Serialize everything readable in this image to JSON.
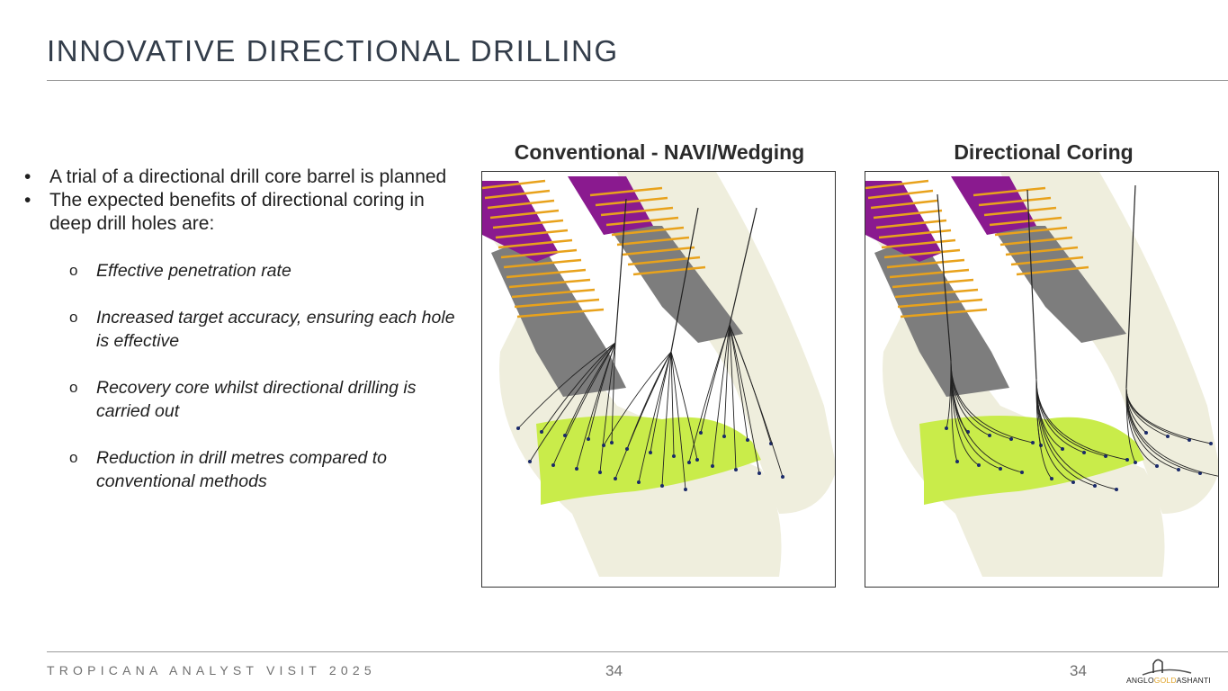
{
  "header": {
    "title": "INNOVATIVE DIRECTIONAL DRILLING"
  },
  "bullets": [
    {
      "text": "A trial of a directional drill core barrel is planned"
    },
    {
      "text": "The expected benefits of directional coring in deep drill holes are:"
    }
  ],
  "sub_bullets": [
    {
      "marker": "o",
      "text": "Effective penetration rate"
    },
    {
      "marker": "o",
      "text": "Increased target accuracy, ensuring each hole is effective"
    },
    {
      "marker": "o",
      "text": "Recovery core whilst directional drilling is carried out"
    },
    {
      "marker": "o",
      "text": "Reduction in drill metres compared to conventional methods"
    }
  ],
  "figures": {
    "left_caption": "Conventional - NAVI/Wedging",
    "right_caption": "Directional Coring"
  },
  "colors": {
    "stopes": "#8a1a8f",
    "development": "#e8a21c",
    "workings": "#7d7d7d",
    "target_surface": "#c9ec4a",
    "orebody": "#efeedd"
  },
  "footer": {
    "text": "TROPICANA ANALYST VISIT 2025",
    "page_center": "34",
    "page_right": "34"
  },
  "logo": {
    "part1": "ANGLO",
    "part2": "GOLD",
    "part3": "ASHANTI"
  }
}
